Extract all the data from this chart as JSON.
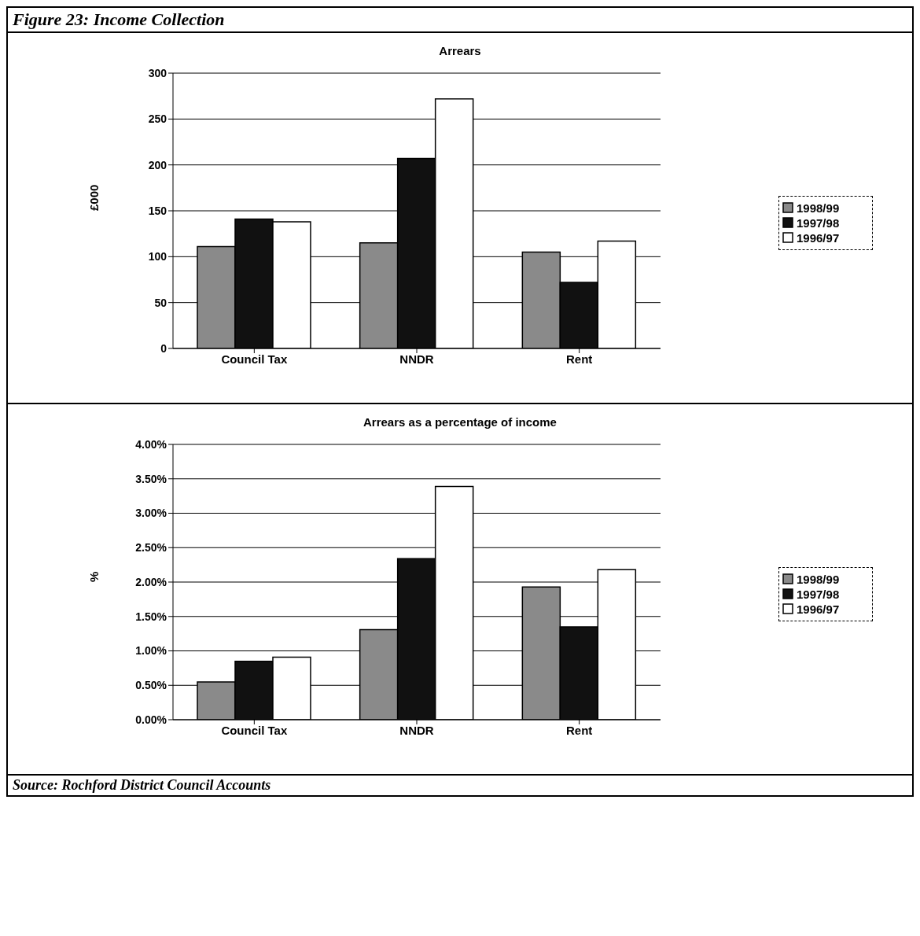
{
  "chart_data": [
    {
      "type": "bar",
      "title": "Arrears",
      "annotations": [
        "Figure 23: Income Collection"
      ],
      "ylabel": "£000",
      "categories": [
        "Council Tax",
        "NNDR",
        "Rent"
      ],
      "series": [
        {
          "name": "1998/99",
          "color": "#8a8a8a",
          "values": [
            111,
            115,
            105
          ]
        },
        {
          "name": "1997/98",
          "color": "#111111",
          "values": [
            141,
            207,
            72
          ]
        },
        {
          "name": "1996/97",
          "color": "#ffffff",
          "values": [
            138,
            272,
            117
          ]
        }
      ],
      "ylim": [
        0,
        300
      ],
      "yticks": [
        0,
        50,
        100,
        150,
        200,
        250,
        300
      ],
      "grid": "y",
      "legend": "right"
    },
    {
      "type": "bar",
      "title": "Arrears as a percentage of income",
      "annotations": [
        "Source: Rochford District Council Accounts"
      ],
      "ylabel": "%",
      "categories": [
        "Council Tax",
        "NNDR",
        "Rent"
      ],
      "series": [
        {
          "name": "1998/99",
          "color": "#8a8a8a",
          "values": [
            0.55,
            1.31,
            1.93
          ]
        },
        {
          "name": "1997/98",
          "color": "#111111",
          "values": [
            0.85,
            2.34,
            1.35
          ]
        },
        {
          "name": "1996/97",
          "color": "#ffffff",
          "values": [
            0.91,
            3.39,
            2.18
          ]
        }
      ],
      "ylim": [
        0,
        4
      ],
      "yticks": [
        {
          "value": 0,
          "label": "0.00%"
        },
        {
          "value": 0.5,
          "label": "0.50%"
        },
        {
          "value": 1,
          "label": "1.00%"
        },
        {
          "value": 1.5,
          "label": "1.50%"
        },
        {
          "value": 2,
          "label": "2.00%"
        },
        {
          "value": 2.5,
          "label": "2.50%"
        },
        {
          "value": 3,
          "label": "3.00%"
        },
        {
          "value": 3.5,
          "label": "3.50%"
        },
        {
          "value": 4,
          "label": "4.00%"
        }
      ],
      "grid": "y",
      "legend": "right"
    }
  ]
}
